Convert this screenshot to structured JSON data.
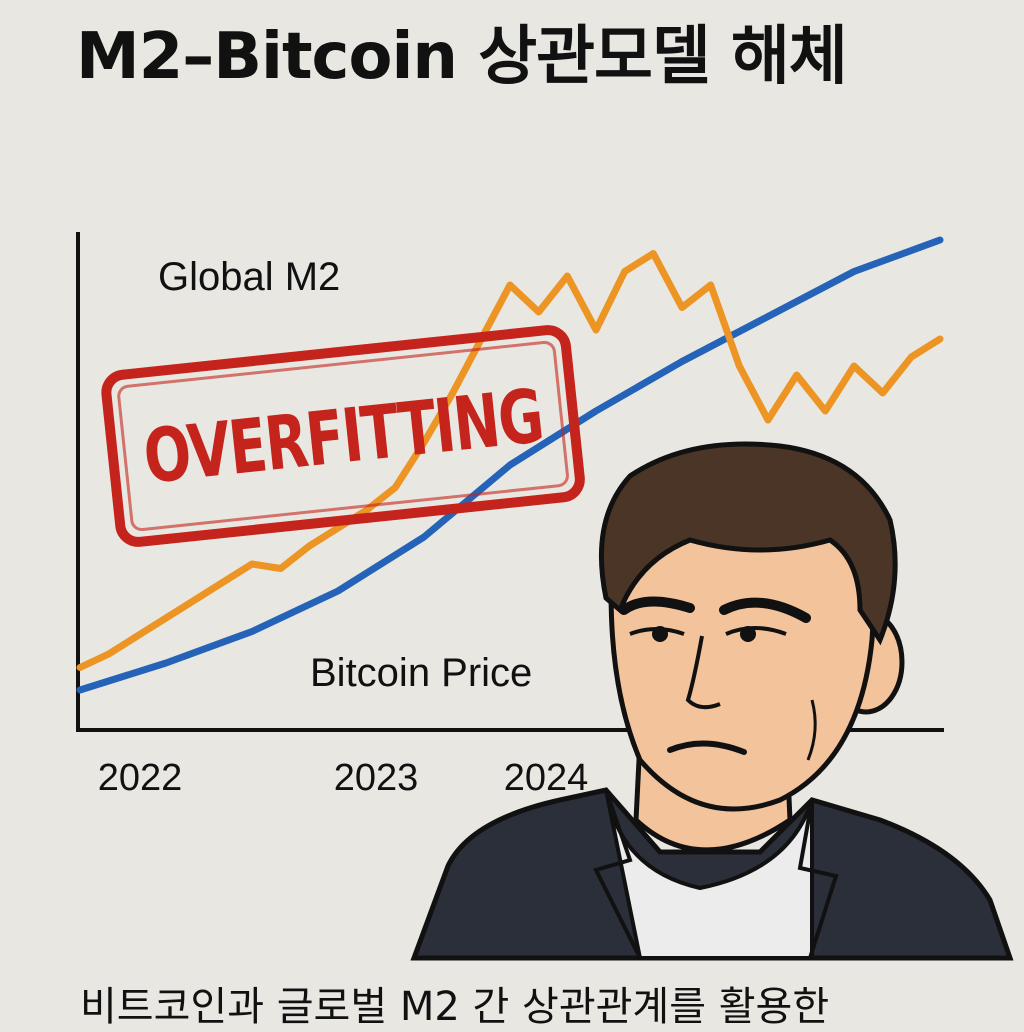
{
  "title": "M2–Bitcoin 상관모델 해체",
  "stamp": {
    "text": "OVERFITTING",
    "color": "#c4241b"
  },
  "caption": "비트코인과 글로벌 M2 간 상관관계를 활용한",
  "illustration": {
    "subject": "frowning-man-portrait"
  },
  "chart_data": {
    "type": "line",
    "x_ticks": [
      "2022",
      "2023",
      "2024"
    ],
    "series": [
      {
        "name": "Global M2",
        "color": "#2563b8",
        "points": [
          [
            2022.0,
            0.0
          ],
          [
            2022.3,
            0.06
          ],
          [
            2022.6,
            0.13
          ],
          [
            2022.9,
            0.22
          ],
          [
            2023.2,
            0.34
          ],
          [
            2023.5,
            0.5
          ],
          [
            2023.8,
            0.62
          ],
          [
            2024.1,
            0.73
          ],
          [
            2024.4,
            0.83
          ],
          [
            2024.7,
            0.93
          ],
          [
            2025.0,
            1.0
          ]
        ]
      },
      {
        "name": "Bitcoin Price",
        "color": "#ec9424",
        "points": [
          [
            2022.0,
            0.05
          ],
          [
            2022.1,
            0.08
          ],
          [
            2022.2,
            0.12
          ],
          [
            2022.3,
            0.16
          ],
          [
            2022.4,
            0.2
          ],
          [
            2022.5,
            0.24
          ],
          [
            2022.6,
            0.28
          ],
          [
            2022.7,
            0.27
          ],
          [
            2022.8,
            0.32
          ],
          [
            2022.9,
            0.36
          ],
          [
            2023.0,
            0.4
          ],
          [
            2023.1,
            0.45
          ],
          [
            2023.2,
            0.55
          ],
          [
            2023.3,
            0.66
          ],
          [
            2023.4,
            0.78
          ],
          [
            2023.5,
            0.9
          ],
          [
            2023.6,
            0.84
          ],
          [
            2023.7,
            0.92
          ],
          [
            2023.8,
            0.8
          ],
          [
            2023.9,
            0.93
          ],
          [
            2024.0,
            0.97
          ],
          [
            2024.1,
            0.85
          ],
          [
            2024.2,
            0.9
          ],
          [
            2024.3,
            0.72
          ],
          [
            2024.4,
            0.6
          ],
          [
            2024.5,
            0.7
          ],
          [
            2024.6,
            0.62
          ],
          [
            2024.7,
            0.72
          ],
          [
            2024.8,
            0.66
          ],
          [
            2024.9,
            0.74
          ],
          [
            2025.0,
            0.78
          ]
        ]
      }
    ],
    "xlim": [
      2022,
      2025
    ],
    "ylim": [
      0,
      1
    ],
    "grid": false,
    "legend": "inline"
  }
}
